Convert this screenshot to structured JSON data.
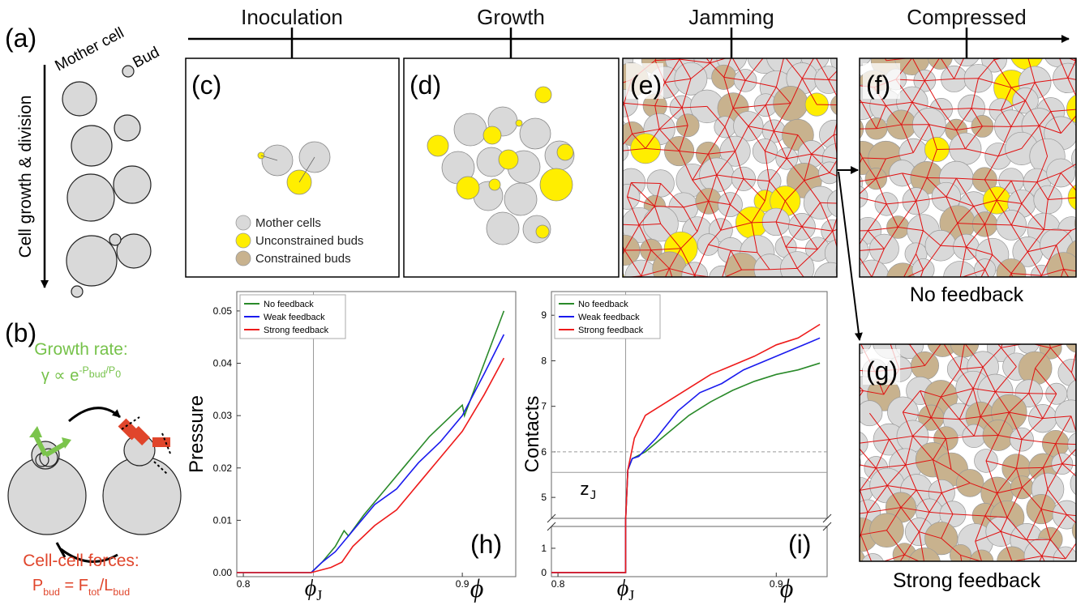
{
  "timeline": [
    "Inoculation",
    "Growth",
    "Jamming",
    "Compressed"
  ],
  "panel_labels": {
    "a": "(a)",
    "b": "(b)",
    "c": "(c)",
    "d": "(d)",
    "e": "(e)",
    "f": "(f)",
    "g": "(g)",
    "h": "(h)",
    "i": "(i)"
  },
  "panel_a": {
    "mother_cell": "Mother cell",
    "bud": "Bud",
    "axis_label": "Cell growth & division"
  },
  "panel_b": {
    "growth_title": "Growth rate:",
    "growth_formula": [
      "γ ∝ e",
      "-P",
      "bud",
      "/P",
      "0"
    ],
    "force_title": "Cell-cell forces:",
    "force_formula": [
      "P",
      "bud",
      " = F",
      "tot",
      "/L",
      "bud"
    ]
  },
  "panel_c_legend": [
    {
      "label": "Mother cells",
      "color": "#d9d9d9"
    },
    {
      "label": "Unconstrained buds",
      "color": "#ffee00"
    },
    {
      "label": "Constrained buds",
      "color": "#c8b28e"
    }
  ],
  "captions": {
    "f": "No feedback",
    "g": "Strong feedback"
  },
  "chart_data": [
    {
      "type": "line",
      "y_label": "Pressure",
      "x_label": "ϕ",
      "legend": "upper left",
      "xlim": [
        0.797,
        0.9244
      ],
      "xticks": [
        0.8,
        0.9
      ],
      "ylim": [
        -0.00077,
        0.0537
      ],
      "yticks": [
        {
          "value": 0,
          "label": "0.00"
        },
        0.01,
        0.02,
        0.03,
        0.04,
        0.05
      ],
      "phi_j": {
        "value": 0.832,
        "symbol": "ϕ",
        "subscript": "J"
      },
      "series": [
        {
          "name": "No feedback",
          "color": "#2a8a2a",
          "x": [
            0.797,
            0.831,
            0.836,
            0.842,
            0.846,
            0.848,
            0.855,
            0.865,
            0.875,
            0.885,
            0.895,
            0.9,
            0.901,
            0.91,
            0.919
          ],
          "values": [
            0,
            0,
            0.002,
            0.005,
            0.008,
            0.007,
            0.011,
            0.016,
            0.021,
            0.026,
            0.03,
            0.032,
            0.03,
            0.04,
            0.05
          ]
        },
        {
          "name": "Weak feedback",
          "color": "#1a1aee",
          "x": [
            0.797,
            0.831,
            0.836,
            0.842,
            0.85,
            0.86,
            0.87,
            0.88,
            0.89,
            0.9,
            0.91,
            0.919
          ],
          "values": [
            0,
            0,
            0.002,
            0.004,
            0.008,
            0.013,
            0.016,
            0.021,
            0.025,
            0.03,
            0.038,
            0.0455
          ]
        },
        {
          "name": "Strong feedback",
          "color": "#ee1a1a",
          "x": [
            0.797,
            0.831,
            0.84,
            0.845,
            0.85,
            0.86,
            0.87,
            0.88,
            0.89,
            0.9,
            0.91,
            0.919
          ],
          "values": [
            0,
            0,
            0.001,
            0.002,
            0.005,
            0.009,
            0.012,
            0.017,
            0.022,
            0.027,
            0.034,
            0.041
          ]
        }
      ]
    },
    {
      "type": "line",
      "y_label": "Contacts",
      "x_label": "ϕ",
      "legend": "upper left",
      "xlim": [
        0.797,
        0.9233
      ],
      "xticks": [
        0.8,
        0.9
      ],
      "ylim": [
        4.54,
        9.52
      ],
      "yticks": [
        5,
        6,
        7,
        8,
        9
      ],
      "y_break": {
        "ylim": [
          -0.17,
          1.9
        ],
        "yticks": [
          0,
          1
        ]
      },
      "reference_line": 6,
      "z_j": {
        "value": 5.55,
        "symbol": "z",
        "subscript": "J"
      },
      "phi_j": {
        "value": 0.831,
        "symbol": "ϕ",
        "subscript": "J"
      },
      "series": [
        {
          "name": "No feedback",
          "color": "#2a8a2a",
          "x": [
            0.797,
            0.831,
            0.831,
            0.832,
            0.834,
            0.84,
            0.85,
            0.86,
            0.87,
            0.88,
            0.89,
            0.9,
            0.91,
            0.92
          ],
          "values": [
            0,
            0,
            4.5,
            5.6,
            5.85,
            6.0,
            6.4,
            6.8,
            7.1,
            7.35,
            7.55,
            7.7,
            7.8,
            7.95
          ]
        },
        {
          "name": "Weak feedback",
          "color": "#1a1aee",
          "x": [
            0.797,
            0.831,
            0.831,
            0.832,
            0.834,
            0.837,
            0.845,
            0.855,
            0.865,
            0.875,
            0.885,
            0.895,
            0.905,
            0.915,
            0.92
          ],
          "values": [
            0,
            0,
            4.5,
            5.6,
            5.85,
            5.9,
            6.3,
            6.9,
            7.3,
            7.5,
            7.8,
            8.0,
            8.2,
            8.4,
            8.5
          ]
        },
        {
          "name": "Strong feedback",
          "color": "#ee1a1a",
          "x": [
            0.797,
            0.831,
            0.831,
            0.832,
            0.835,
            0.84,
            0.85,
            0.86,
            0.87,
            0.88,
            0.89,
            0.9,
            0.91,
            0.92
          ],
          "values": [
            0,
            0,
            4.5,
            5.6,
            6.3,
            6.8,
            7.1,
            7.4,
            7.7,
            7.9,
            8.1,
            8.35,
            8.5,
            8.8
          ]
        }
      ]
    }
  ]
}
